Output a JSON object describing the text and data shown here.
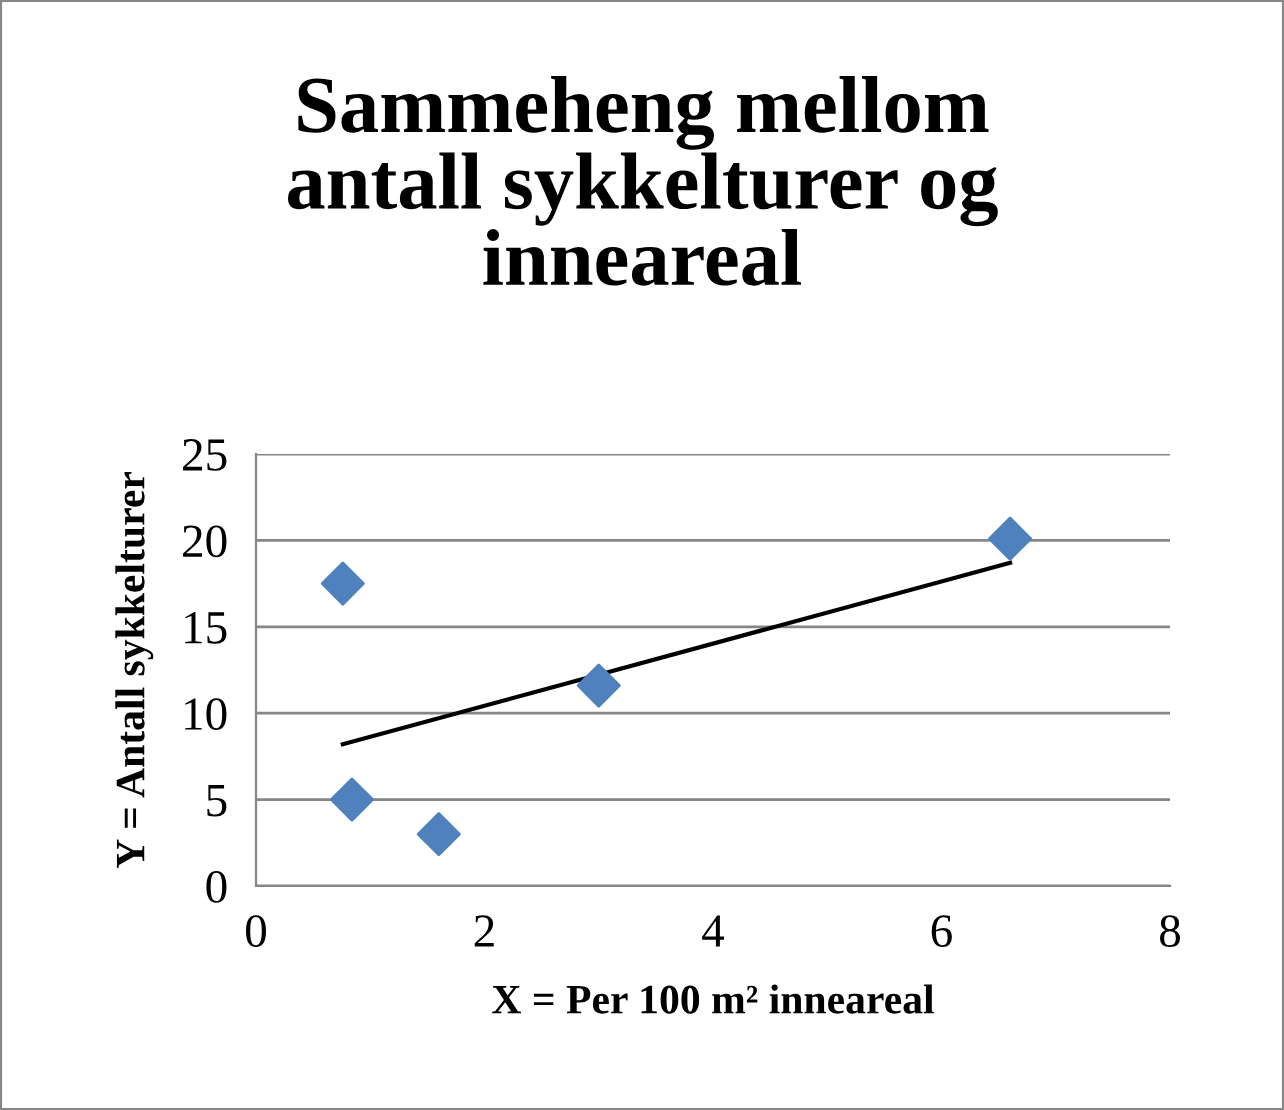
{
  "chart_data": {
    "type": "scatter",
    "title": "Sammeheng mellom\nantall sykkelturer og\ninneareal",
    "xlabel": "X = Per 100 m² inneareal",
    "ylabel": "Y = Antall sykkelturer",
    "series": [
      {
        "color": "#4f81bd",
        "marker": "diamond",
        "x": [
          0.76,
          0.84,
          1.6,
          3.0,
          6.6
        ],
        "values": [
          17.5,
          5.0,
          3.0,
          11.6,
          20.1
        ]
      },
      {
        "type": "line",
        "color": "#000000",
        "marker": "none",
        "x": [
          0.76,
          6.6
        ],
        "values": [
          8.2,
          18.7
        ]
      }
    ],
    "xlim": [
      0,
      8
    ],
    "xticks": [
      0,
      2,
      4,
      6,
      8
    ],
    "ylim": [
      0,
      25
    ],
    "yticks": [
      0,
      5,
      10,
      15,
      20,
      25
    ],
    "grid": "y",
    "legend": false
  }
}
